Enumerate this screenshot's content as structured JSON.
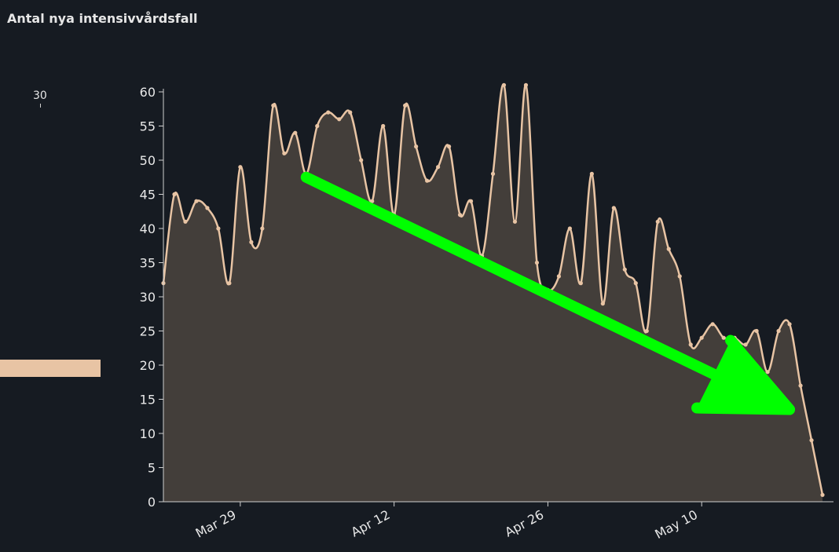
{
  "header": {
    "title": "Antal nya intensivvårdsfall"
  },
  "sidebar": {
    "value_label": "30"
  },
  "colors": {
    "background": "#161b22",
    "line": "#e8c4a4",
    "area": "#433e3a",
    "arrow": "#00ff00",
    "side_bar": "#e8c4a4"
  },
  "chart_data": {
    "type": "area",
    "title": "Antal nya intensivvårdsfall",
    "xlabel": "",
    "ylabel": "",
    "ylim": [
      0,
      60
    ],
    "yticks": [
      0,
      5,
      10,
      15,
      20,
      25,
      30,
      35,
      40,
      45,
      50,
      55,
      60
    ],
    "x_start": "2020-03-22",
    "x_end": "2020-05-22",
    "xticks": [
      {
        "date": "2020-03-29",
        "label": "Mar 29"
      },
      {
        "date": "2020-04-12",
        "label": "Apr 12"
      },
      {
        "date": "2020-04-26",
        "label": "Apr 26"
      },
      {
        "date": "2020-05-10",
        "label": "May 10"
      }
    ],
    "series": [
      {
        "start_date": "2020-03-22",
        "values": [
          32,
          45,
          41,
          44,
          43,
          40,
          32,
          49,
          38,
          40,
          58,
          51,
          54,
          48,
          55,
          57,
          56,
          57,
          50,
          44,
          55,
          42,
          58,
          52,
          47,
          49,
          52,
          42,
          44,
          36,
          48,
          61,
          41,
          61,
          35,
          31,
          33,
          40,
          32,
          48,
          29,
          43,
          34,
          32,
          25,
          41,
          37,
          33,
          23,
          24,
          26,
          24,
          24,
          23,
          25,
          19,
          25,
          26,
          17,
          9,
          1
        ]
      }
    ],
    "annotation": {
      "type": "arrow",
      "from": {
        "date": "2020-04-04",
        "value": 47.5
      },
      "to": {
        "date": "2020-05-18",
        "value": 13.5
      }
    },
    "grid": false,
    "legend": "none"
  }
}
